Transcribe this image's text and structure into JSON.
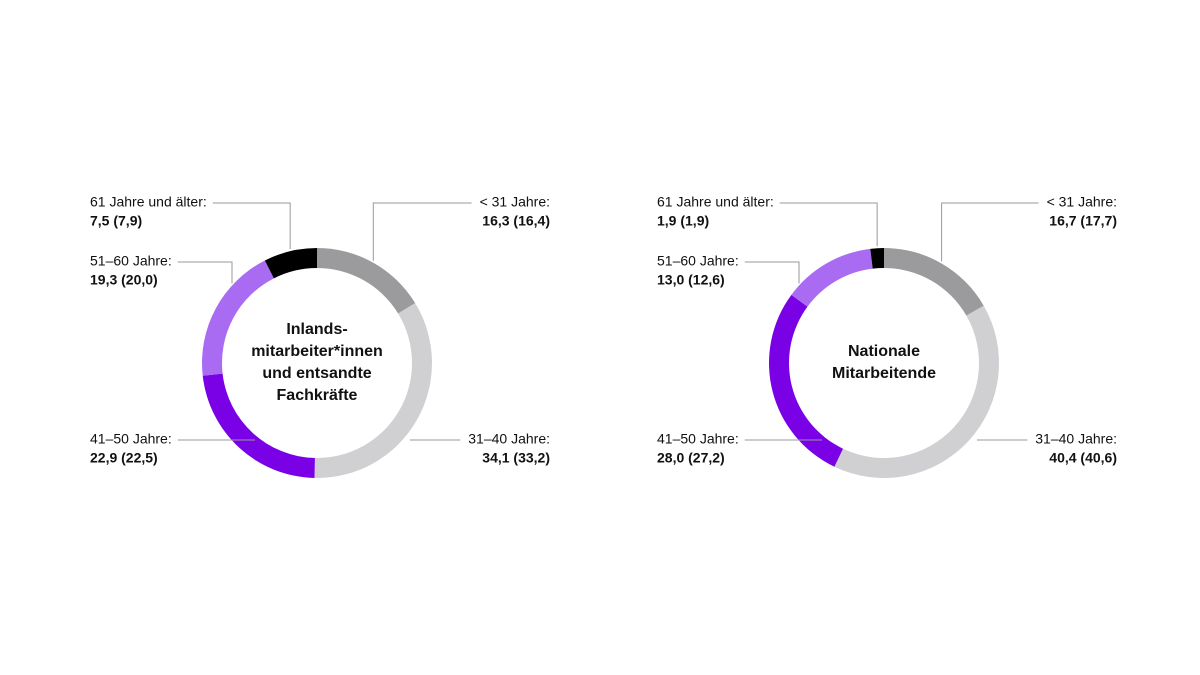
{
  "chart_data": [
    {
      "type": "donut",
      "title": [
        "Inlands-",
        "mitarbeiter*innen",
        "und entsandte",
        "Fachkräfte"
      ],
      "categories": [
        "< 31 Jahre:",
        "31–40 Jahre:",
        "41–50 Jahre:",
        "51–60 Jahre:",
        "61 Jahre und älter:"
      ],
      "values": [
        16.3,
        34.1,
        22.9,
        19.3,
        7.5
      ],
      "value_labels": [
        "16,3 (16,4)",
        "34,1 (33,2)",
        "22,9 (22,5)",
        "19,3 (20,0)",
        "7,5 (7,9)"
      ],
      "colors": [
        "#9b9a9c",
        "#d0cfd1",
        "#7a00e6",
        "#a86bf2",
        "#000000"
      ]
    },
    {
      "type": "donut",
      "title": [
        "Nationale",
        "Mitarbeitende"
      ],
      "categories": [
        "< 31 Jahre:",
        "31–40 Jahre:",
        "41–50 Jahre:",
        "51–60 Jahre:",
        "61 Jahre und älter:"
      ],
      "values": [
        16.7,
        40.4,
        28.0,
        13.0,
        1.9
      ],
      "value_labels": [
        "16,7 (17,7)",
        "40,4 (40,6)",
        "28,0 (27,2)",
        "13,0 (12,6)",
        "1,9 (1,9)"
      ],
      "colors": [
        "#9b9a9c",
        "#d0cfd1",
        "#7a00e6",
        "#a86bf2",
        "#000000"
      ]
    }
  ]
}
